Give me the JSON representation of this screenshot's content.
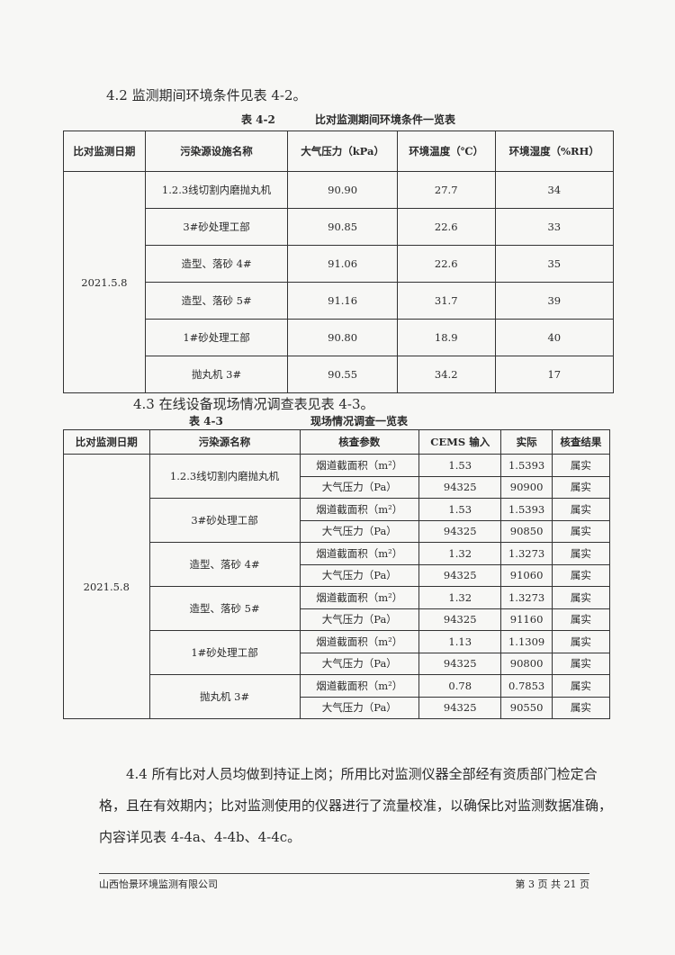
{
  "section42": {
    "heading": "4.2 监测期间环境条件见表 4-2。",
    "caption_no": "表 4-2",
    "caption_title": "比对监测期间环境条件一览表"
  },
  "table42": {
    "headers": [
      "比对监测日期",
      "污染源设施名称",
      "大气压力（kPa）",
      "环境温度（℃）",
      "环境湿度（%RH）"
    ],
    "date": "2021.5.8",
    "rows": [
      {
        "name": "1.2.3线切割内磨抛丸机",
        "pressure": "90.90",
        "temp": "27.7",
        "humidity": "34"
      },
      {
        "name": "3#砂处理工部",
        "pressure": "90.85",
        "temp": "22.6",
        "humidity": "33"
      },
      {
        "name": "造型、落砂 4#",
        "pressure": "91.06",
        "temp": "22.6",
        "humidity": "35"
      },
      {
        "name": "造型、落砂 5#",
        "pressure": "91.16",
        "temp": "31.7",
        "humidity": "39"
      },
      {
        "name": "1#砂处理工部",
        "pressure": "90.80",
        "temp": "18.9",
        "humidity": "40"
      },
      {
        "name": "抛丸机 3#",
        "pressure": "90.55",
        "temp": "34.2",
        "humidity": "17"
      }
    ]
  },
  "section43": {
    "heading": "4.3 在线设备现场情况调查表见表 4-3。",
    "caption_no": "表 4-3",
    "caption_title": "现场情况调查一览表"
  },
  "table43": {
    "headers": [
      "比对监测日期",
      "污染源名称",
      "核查参数",
      "CEMS 输入",
      "实际",
      "核查结果"
    ],
    "date": "2021.5.8",
    "param_area": "烟道截面积（m²）",
    "param_pressure": "大气压力（Pa）",
    "result": "属实",
    "sources": [
      {
        "name": "1.2.3线切割内磨抛丸机",
        "area_cems": "1.53",
        "area_actual": "1.5393",
        "p_cems": "94325",
        "p_actual": "90900"
      },
      {
        "name": "3#砂处理工部",
        "area_cems": "1.53",
        "area_actual": "1.5393",
        "p_cems": "94325",
        "p_actual": "90850"
      },
      {
        "name": "造型、落砂 4#",
        "area_cems": "1.32",
        "area_actual": "1.3273",
        "p_cems": "94325",
        "p_actual": "91060"
      },
      {
        "name": "造型、落砂 5#",
        "area_cems": "1.32",
        "area_actual": "1.3273",
        "p_cems": "94325",
        "p_actual": "91160"
      },
      {
        "name": "1#砂处理工部",
        "area_cems": "1.13",
        "area_actual": "1.1309",
        "p_cems": "94325",
        "p_actual": "90800"
      },
      {
        "name": "抛丸机 3#",
        "area_cems": "0.78",
        "area_actual": "0.7853",
        "p_cems": "94325",
        "p_actual": "90550"
      }
    ]
  },
  "section44": {
    "text": "4.4 所有比对人员均做到持证上岗；所用比对监测仪器全部经有资质部门检定合格，且在有效期内；比对监测使用的仪器进行了流量校准，以确保比对监测数据准确，内容详见表 4-4a、4-4b、4-4c。"
  },
  "footer": {
    "company": "山西怡景环境监测有限公司",
    "page": "第 3 页 共 21 页"
  }
}
